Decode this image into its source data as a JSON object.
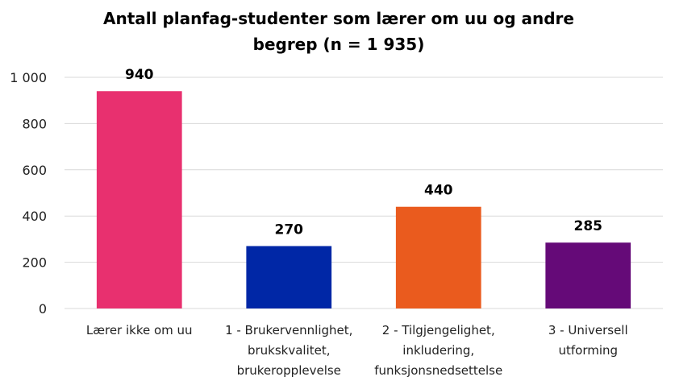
{
  "chart_data": {
    "type": "bar",
    "title": [
      "Antall planfag-studenter som lærer om uu og andre",
      "begrep (n = 1 935)"
    ],
    "categories": [
      [
        "Lærer ikke om uu"
      ],
      [
        "1 - Brukervennlighet,",
        "brukskvalitet,",
        "brukeropplevelse"
      ],
      [
        "2 - Tilgjengelighet,",
        "inkludering,",
        "funksjonsnedsettelse"
      ],
      [
        "3 - Universell",
        "utforming"
      ]
    ],
    "values": [
      940,
      270,
      440,
      285
    ],
    "value_labels": [
      "940",
      "270",
      "440",
      "285"
    ],
    "colors": [
      "#E8306F",
      "#0027A6",
      "#EA5B1E",
      "#650A78"
    ],
    "ylim": [
      0,
      1000
    ],
    "yticks": [
      0,
      200,
      400,
      600,
      800,
      1000
    ],
    "ytick_labels": [
      "0",
      "200",
      "400",
      "600",
      "800",
      "1 000"
    ],
    "grid": true,
    "gridline_color": "#d9d9d9",
    "legend": "none",
    "xlabel": "",
    "ylabel": ""
  }
}
